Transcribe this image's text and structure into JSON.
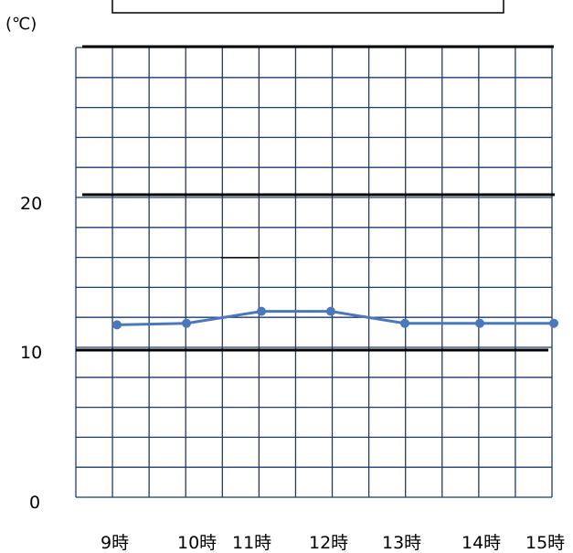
{
  "chart_data": {
    "type": "line",
    "unit_label": "(℃)",
    "ylabel": "",
    "xlabel": "",
    "y_ticks": [
      "0",
      "10",
      "20"
    ],
    "ylim": [
      0,
      30
    ],
    "grid": true,
    "x": [
      "9時",
      "10時",
      "11時",
      "12時",
      "13時",
      "14時",
      "15時"
    ],
    "series": [
      {
        "values": [
          11.5,
          11.6,
          12.4,
          12.4,
          11.6,
          11.6,
          11.6
        ],
        "color": "#4a78bb"
      }
    ],
    "colors": {
      "grid": "#1f3a6e",
      "axis_lines": "#000000",
      "line": "#4a78bb"
    }
  }
}
